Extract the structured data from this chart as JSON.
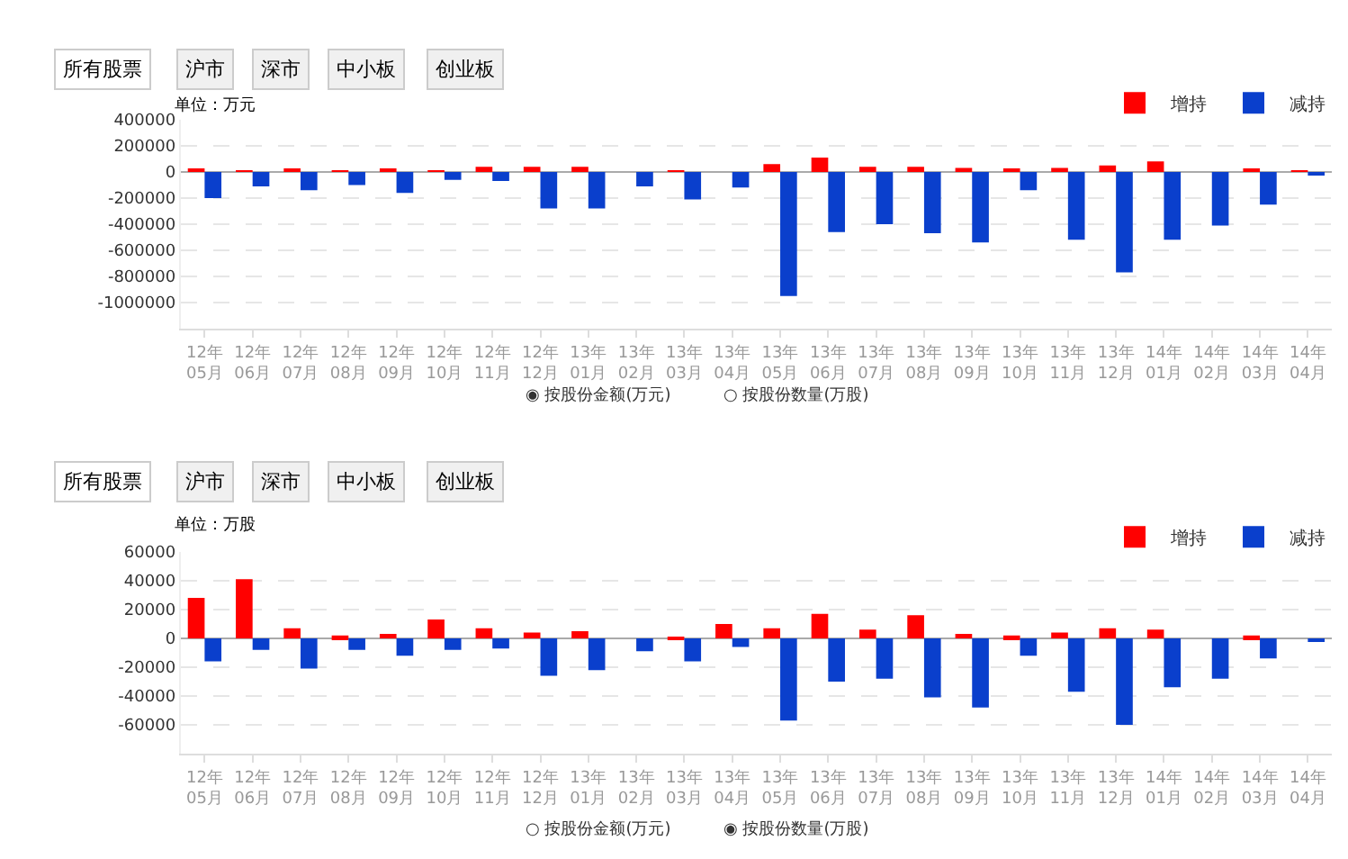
{
  "chart_data": [
    {
      "type": "bar",
      "categories": [
        "12年\n05月",
        "12年\n06月",
        "12年\n07月",
        "12年\n08月",
        "12年\n09月",
        "12年\n10月",
        "12年\n11月",
        "12年\n12月",
        "13年\n01月",
        "13年\n02月",
        "13年\n03月",
        "13年\n04月",
        "13年\n05月",
        "13年\n06月",
        "13年\n07月",
        "13年\n08月",
        "13年\n09月",
        "13年\n10月",
        "13年\n11月",
        "13年\n12月",
        "14年\n01月",
        "14年\n02月",
        "14年\n03月",
        "14年\n04月"
      ],
      "series": [
        {
          "name": "增持",
          "color": "#ff0000",
          "values": [
            20000,
            10000,
            20000,
            10000,
            20000,
            10000,
            40000,
            40000,
            40000,
            0,
            10000,
            0,
            60000,
            110000,
            40000,
            40000,
            30000,
            20000,
            30000,
            50000,
            80000,
            0,
            20000,
            10000
          ]
        },
        {
          "name": "减持",
          "color": "#0a3fcc",
          "values": [
            -200000,
            -110000,
            -140000,
            -100000,
            -160000,
            -60000,
            -70000,
            -280000,
            -280000,
            -110000,
            -210000,
            -120000,
            -950000,
            -460000,
            -400000,
            -470000,
            -540000,
            -140000,
            -520000,
            -770000,
            -520000,
            -410000,
            -250000,
            -20000
          ]
        }
      ],
      "ylim": [
        -1200000,
        400000
      ],
      "yticks": [
        400000,
        200000,
        0,
        -200000,
        -400000,
        -600000,
        -800000,
        -1000000
      ],
      "grid": "y",
      "legend": "top right",
      "annotations": [
        "所有股票",
        "沪市",
        "深市",
        "中小板",
        "创业板",
        "单位：万元",
        "◉ 按股份金额(万元)",
        "○ 按股份数量(万股)"
      ]
    },
    {
      "type": "bar",
      "categories": [
        "12年\n05月",
        "12年\n06月",
        "12年\n07月",
        "12年\n08月",
        "12年\n09月",
        "12年\n10月",
        "12年\n11月",
        "12年\n12月",
        "13年\n01月",
        "13年\n02月",
        "13年\n03月",
        "13年\n04月",
        "13年\n05月",
        "13年\n06月",
        "13年\n07月",
        "13年\n08月",
        "13年\n09月",
        "13年\n10月",
        "13年\n11月",
        "13年\n12月",
        "14年\n01月",
        "14年\n02月",
        "14年\n03月",
        "14年\n04月"
      ],
      "series": [
        {
          "name": "增持",
          "color": "#ff0000",
          "values": [
            28000,
            41000,
            7000,
            2000,
            3000,
            13000,
            7000,
            4000,
            5000,
            0,
            1000,
            10000,
            7000,
            17000,
            6000,
            16000,
            3000,
            2000,
            4000,
            7000,
            6000,
            0,
            2000,
            0
          ]
        },
        {
          "name": "减持",
          "color": "#0a3fcc",
          "values": [
            -16000,
            -8000,
            -21000,
            -8000,
            -12000,
            -8000,
            -7000,
            -26000,
            -22000,
            -9000,
            -16000,
            -6000,
            -57000,
            -30000,
            -28000,
            -41000,
            -48000,
            -12000,
            -37000,
            -60000,
            -34000,
            -28000,
            -14000,
            -2000
          ]
        }
      ],
      "ylim": [
        -80000,
        60000
      ],
      "yticks": [
        60000,
        40000,
        20000,
        0,
        -20000,
        -40000,
        -60000
      ],
      "grid": "y",
      "legend": "top right",
      "annotations": [
        "所有股票",
        "沪市",
        "深市",
        "中小板",
        "创业板",
        "单位：万股",
        "○ 按股份金额(万元)",
        "◉ 按股份数量(万股)"
      ]
    }
  ]
}
